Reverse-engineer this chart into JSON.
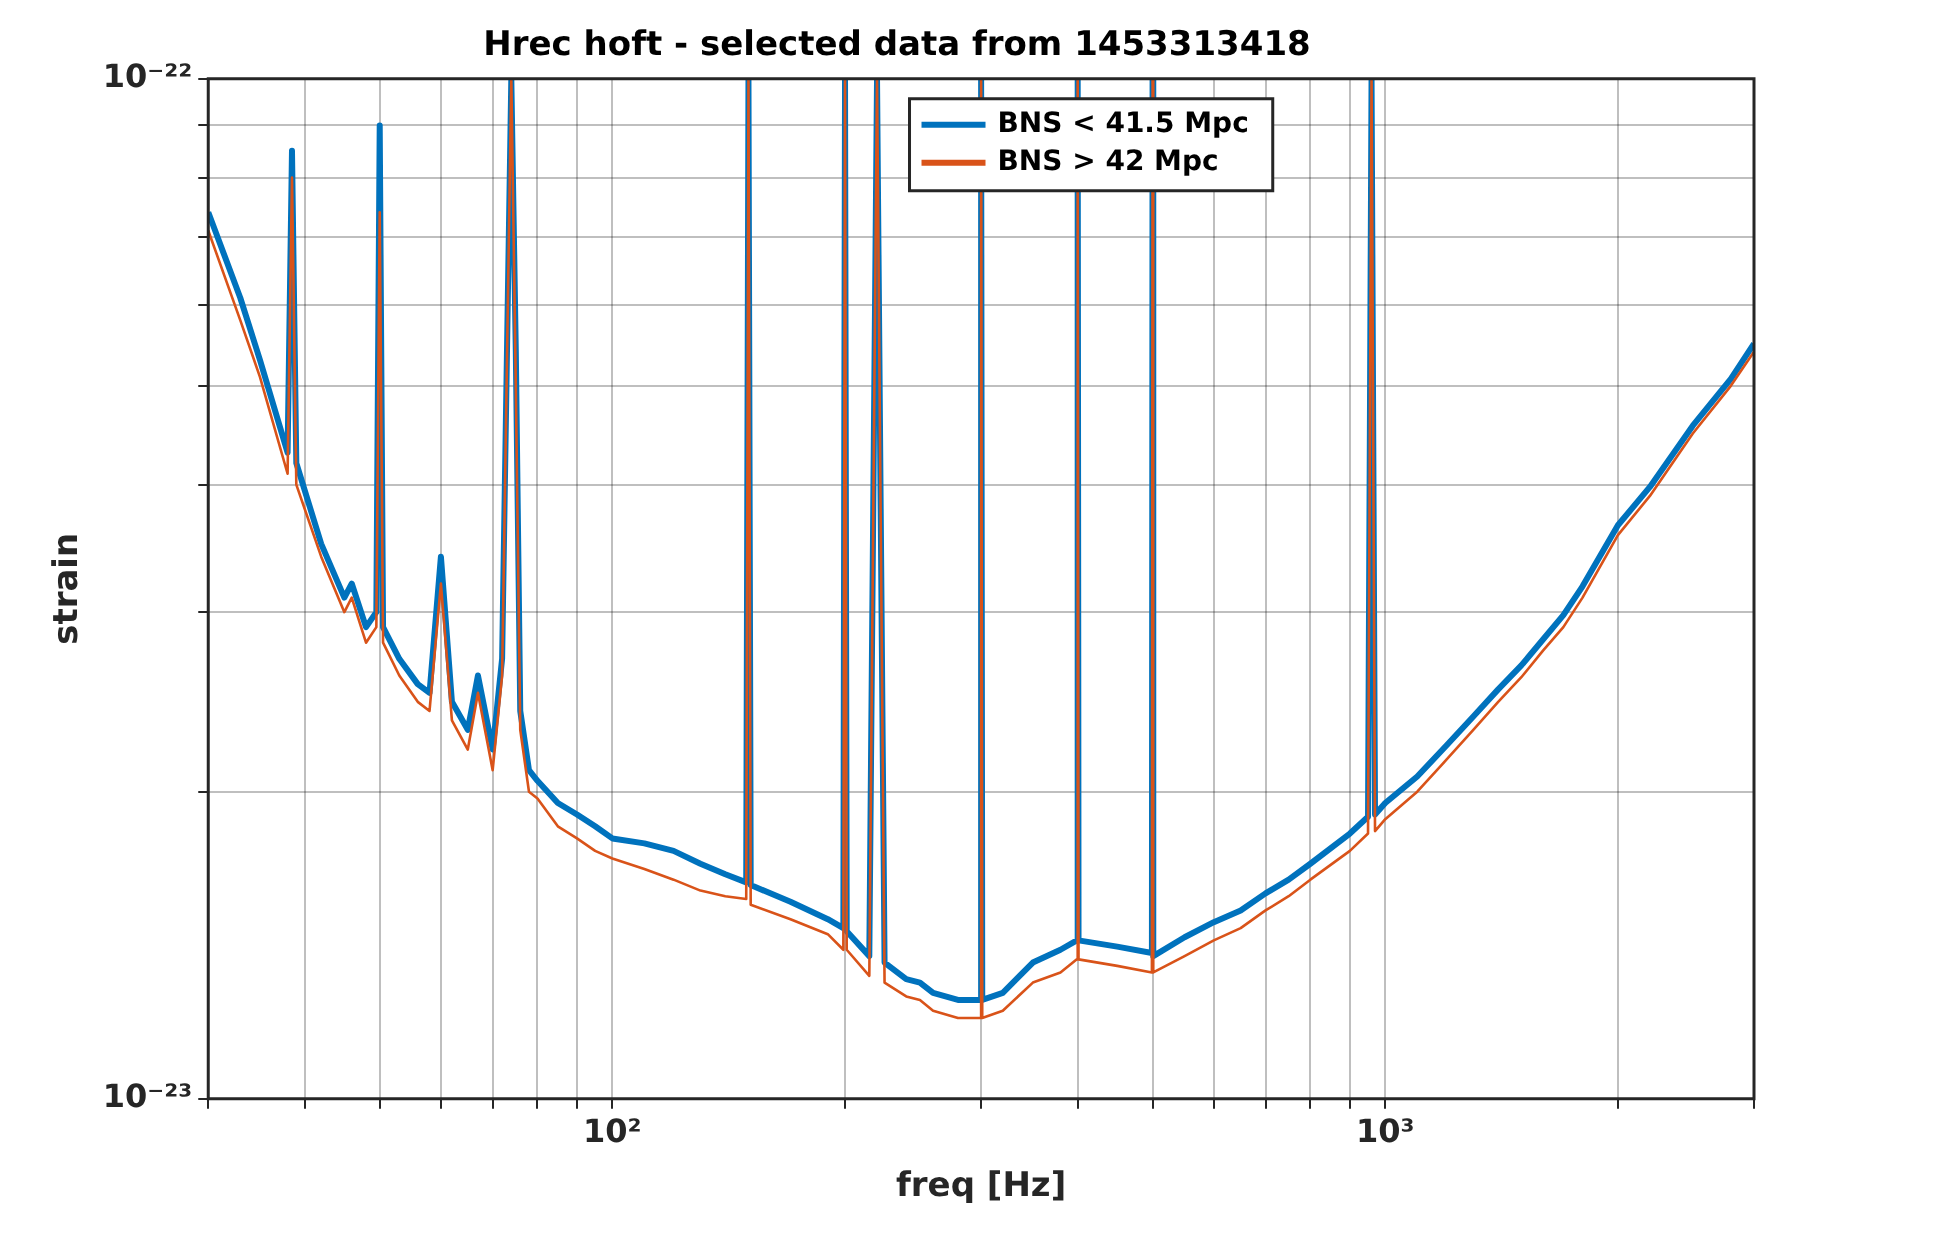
{
  "chart_data": {
    "type": "line",
    "title": "Hrec hoft - selected data from 1453313418",
    "xlabel": "freq [Hz]",
    "ylabel": "strain",
    "log": "xy",
    "grid": true,
    "legend": "top",
    "line_style": "solid",
    "xlim": [
      30,
      3000
    ],
    "xticks": [
      {
        "value": 30,
        "label": null
      },
      {
        "value": 40,
        "label": null
      },
      {
        "value": 50,
        "label": null
      },
      {
        "value": 60,
        "label": null
      },
      {
        "value": 70,
        "label": null
      },
      {
        "value": 80,
        "label": null
      },
      {
        "value": 90,
        "label": null
      },
      {
        "value": 100,
        "label": "10²"
      },
      {
        "value": 200,
        "label": null
      },
      {
        "value": 300,
        "label": null
      },
      {
        "value": 400,
        "label": null
      },
      {
        "value": 500,
        "label": null
      },
      {
        "value": 600,
        "label": null
      },
      {
        "value": 700,
        "label": null
      },
      {
        "value": 800,
        "label": null
      },
      {
        "value": 900,
        "label": null
      },
      {
        "value": 1000,
        "label": "10³"
      },
      {
        "value": 2000,
        "label": null
      },
      {
        "value": 3000,
        "label": null
      }
    ],
    "ylim": [
      1e-23,
      1e-22
    ],
    "yticks": [
      {
        "value": 1e-23,
        "label": "10⁻²³"
      },
      {
        "value": 2e-23,
        "label": null
      },
      {
        "value": 3e-23,
        "label": null
      },
      {
        "value": 4e-23,
        "label": null
      },
      {
        "value": 5e-23,
        "label": null
      },
      {
        "value": 6e-23,
        "label": null
      },
      {
        "value": 7e-23,
        "label": null
      },
      {
        "value": 8e-23,
        "label": null
      },
      {
        "value": 9e-23,
        "label": null
      },
      {
        "value": 1e-22,
        "label": "10⁻²²"
      }
    ],
    "series": [
      {
        "name": "BNS < 41.5 Mpc",
        "color": "#0072bd",
        "x": [
          30,
          33,
          35,
          38,
          38.5,
          39,
          42,
          45,
          46,
          48,
          49.5,
          50,
          50.5,
          53,
          56,
          58,
          60,
          62,
          65,
          67,
          70,
          72,
          74,
          75,
          76,
          78,
          80,
          85,
          90,
          95,
          100,
          110,
          120,
          130,
          140,
          149,
          150,
          151,
          170,
          190,
          199,
          200,
          201,
          215,
          220,
          225,
          240,
          250,
          260,
          280,
          299,
          300,
          301,
          320,
          350,
          380,
          399,
          400,
          401,
          450,
          499,
          500,
          501,
          550,
          600,
          650,
          700,
          750,
          800,
          900,
          950,
          960,
          970,
          1000,
          1100,
          1200,
          1300,
          1400,
          1500,
          1600,
          1700,
          1800,
          2000,
          2200,
          2500,
          2800,
          3000
        ],
        "values": [
          7.4e-23,
          6.1e-23,
          5.3e-23,
          4.3e-23,
          8.5e-23,
          4.2e-23,
          3.5e-23,
          3.1e-23,
          3.2e-23,
          2.9e-23,
          3e-23,
          9e-23,
          2.9e-23,
          2.7e-23,
          2.55e-23,
          2.5e-23,
          3.4e-23,
          2.45e-23,
          2.3e-23,
          2.6e-23,
          2.2e-23,
          2.7e-23,
          1e-22,
          5.4e-23,
          2.4e-23,
          2.1e-23,
          2.05e-23,
          1.95e-23,
          1.9e-23,
          1.85e-23,
          1.8e-23,
          1.78e-23,
          1.75e-23,
          1.7e-23,
          1.66e-23,
          1.63e-23,
          1e-22,
          1.62e-23,
          1.56e-23,
          1.5e-23,
          1.47e-23,
          1e-22,
          1.46e-23,
          1.38e-23,
          1e-22,
          1.36e-23,
          1.31e-23,
          1.3e-23,
          1.27e-23,
          1.25e-23,
          1.25e-23,
          1e-22,
          1.25e-23,
          1.27e-23,
          1.36e-23,
          1.4e-23,
          1.43e-23,
          1e-22,
          1.43e-23,
          1.41e-23,
          1.39e-23,
          1e-22,
          1.38e-23,
          1.44e-23,
          1.49e-23,
          1.53e-23,
          1.59e-23,
          1.64e-23,
          1.7e-23,
          1.82e-23,
          1.89e-23,
          1e-22,
          1.9e-23,
          1.95e-23,
          2.07e-23,
          2.22e-23,
          2.37e-23,
          2.52e-23,
          2.66e-23,
          2.82e-23,
          2.98e-23,
          3.18e-23,
          3.65e-23,
          3.98e-23,
          4.57e-23,
          5.08e-23,
          5.5e-23
        ]
      },
      {
        "name": "BNS > 42 Mpc",
        "color": "#d95319",
        "x": [
          30,
          33,
          35,
          38,
          38.5,
          39,
          42,
          45,
          46,
          48,
          49.5,
          50,
          50.5,
          53,
          56,
          58,
          60,
          62,
          65,
          67,
          70,
          72,
          74,
          75,
          76,
          78,
          80,
          85,
          90,
          95,
          100,
          110,
          120,
          130,
          140,
          149,
          150,
          151,
          170,
          190,
          199,
          200,
          201,
          215,
          220,
          225,
          240,
          250,
          260,
          280,
          299,
          300,
          301,
          320,
          350,
          380,
          399,
          400,
          401,
          450,
          499,
          500,
          501,
          550,
          600,
          650,
          700,
          750,
          800,
          900,
          950,
          960,
          970,
          1000,
          1100,
          1200,
          1300,
          1400,
          1500,
          1600,
          1700,
          1800,
          2000,
          2200,
          2500,
          2800,
          3000
        ],
        "values": [
          7.1e-23,
          5.8e-23,
          5.1e-23,
          4.1e-23,
          8e-23,
          4e-23,
          3.4e-23,
          3e-23,
          3.1e-23,
          2.8e-23,
          2.9e-23,
          7.4e-23,
          2.8e-23,
          2.6e-23,
          2.45e-23,
          2.4e-23,
          3.2e-23,
          2.35e-23,
          2.2e-23,
          2.5e-23,
          2.1e-23,
          2.6e-23,
          1e-22,
          5e-23,
          2.3e-23,
          2e-23,
          1.97e-23,
          1.85e-23,
          1.8e-23,
          1.75e-23,
          1.72e-23,
          1.68e-23,
          1.64e-23,
          1.6e-23,
          1.58e-23,
          1.57e-23,
          1e-22,
          1.55e-23,
          1.5e-23,
          1.45e-23,
          1.4e-23,
          1e-22,
          1.4e-23,
          1.32e-23,
          1e-22,
          1.3e-23,
          1.26e-23,
          1.25e-23,
          1.22e-23,
          1.2e-23,
          1.2e-23,
          1e-22,
          1.2e-23,
          1.22e-23,
          1.3e-23,
          1.33e-23,
          1.37e-23,
          1e-22,
          1.37e-23,
          1.35e-23,
          1.33e-23,
          1e-22,
          1.33e-23,
          1.38e-23,
          1.43e-23,
          1.47e-23,
          1.53e-23,
          1.58e-23,
          1.64e-23,
          1.75e-23,
          1.82e-23,
          1e-22,
          1.83e-23,
          1.88e-23,
          2e-23,
          2.15e-23,
          2.3e-23,
          2.45e-23,
          2.59e-23,
          2.75e-23,
          2.9e-23,
          3.1e-23,
          3.57e-23,
          3.9e-23,
          4.49e-23,
          5e-23,
          5.4e-23
        ]
      }
    ]
  }
}
